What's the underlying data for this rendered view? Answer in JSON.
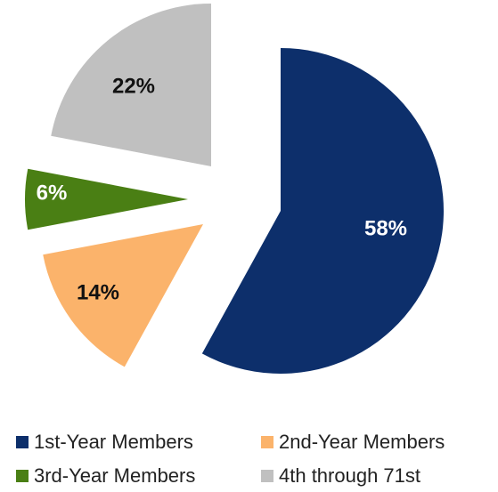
{
  "chart_data": {
    "type": "pie",
    "categories": [
      "1st-Year Members",
      "2nd-Year Members",
      "3rd-Year Members",
      "4th through 71st"
    ],
    "values": [
      58,
      14,
      6,
      22
    ],
    "value_labels": [
      "58%",
      "14%",
      "6%",
      "22%"
    ],
    "colors": [
      "#0d2f6b",
      "#fbb36b",
      "#4a7f14",
      "#c0c0c0"
    ],
    "legend": "bottom"
  }
}
